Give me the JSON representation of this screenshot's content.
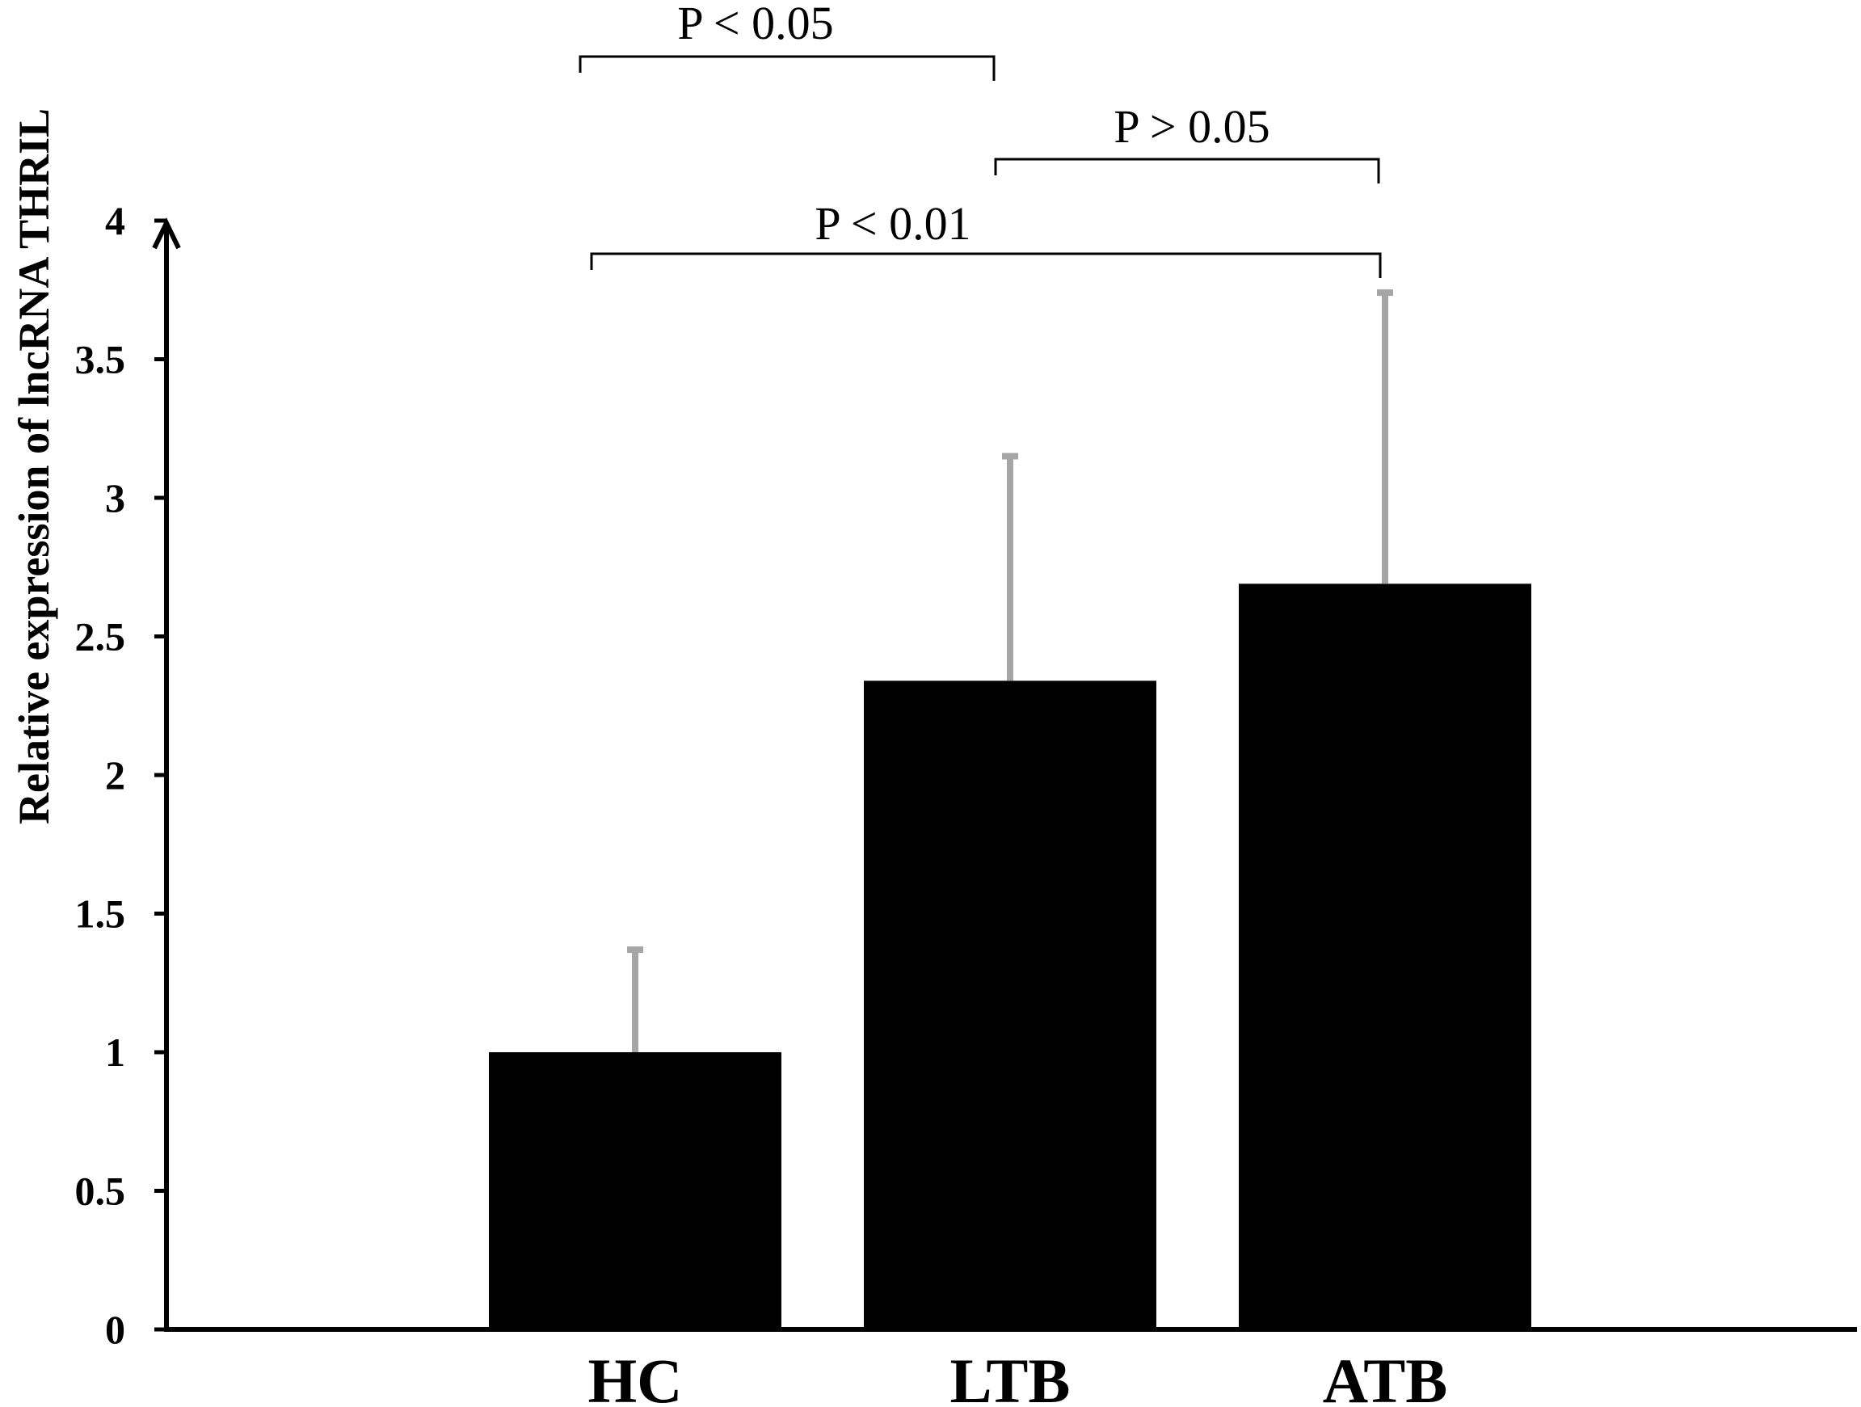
{
  "chart_data": {
    "type": "bar",
    "categories": [
      "HC",
      "LTB",
      "ATB"
    ],
    "values": [
      1.0,
      2.34,
      2.69
    ],
    "error_upper": [
      1.37,
      3.15,
      3.74
    ],
    "ylabel": "Relative expression of lncRNA THRIL",
    "ylim": [
      0,
      4
    ],
    "yticks": [
      "0",
      "0.5",
      "1",
      "1.5",
      "2",
      "2.5",
      "3",
      "3.5",
      "4"
    ],
    "grid": false,
    "colors": {
      "bar": "#000000",
      "error": "#a6a6a6",
      "axis": "#000000"
    },
    "significance": [
      {
        "from": "HC",
        "to": "LTB",
        "label": "P < 0.05"
      },
      {
        "from": "LTB",
        "to": "ATB",
        "label": "P > 0.05"
      },
      {
        "from": "HC",
        "to": "ATB",
        "label": "P < 0.01"
      }
    ]
  }
}
